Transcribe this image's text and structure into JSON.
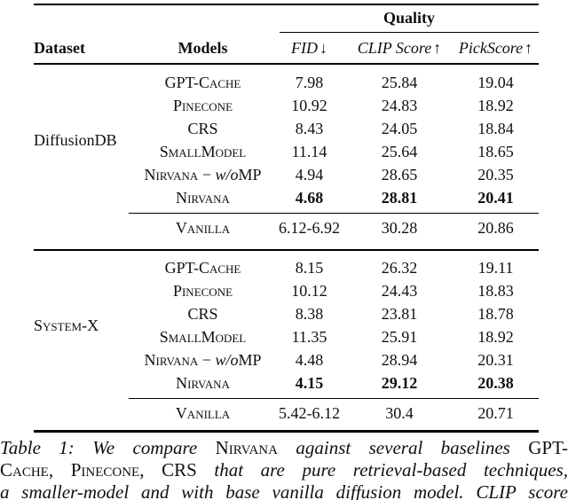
{
  "table": {
    "group_header": {
      "label": "Quality"
    },
    "columns": {
      "dataset": "Dataset",
      "models": "Models",
      "fid": "FID",
      "fid_arrow": "↓",
      "clip": "CLIP Score",
      "clip_arrow": "↑",
      "pick": "PickScore",
      "pick_arrow": "↑"
    },
    "blocks": [
      {
        "dataset": "DiffusionDB",
        "rows": [
          {
            "model": "GPT-Cache",
            "fid": "7.98",
            "clip": "25.84",
            "pick": "19.04"
          },
          {
            "model": "Pinecone",
            "fid": "10.92",
            "clip": "24.83",
            "pick": "18.92"
          },
          {
            "model": "CRS",
            "fid": "8.43",
            "clip": "24.05",
            "pick": "18.84"
          },
          {
            "model": "SmallModel",
            "fid": "11.14",
            "clip": "25.64",
            "pick": "18.65"
          },
          {
            "model": "Nirvana",
            "dash": " − ",
            "wo": "w/o",
            "mp": "MP",
            "fid": "4.94",
            "clip": "28.65",
            "pick": "20.35"
          },
          {
            "model": "Nirvana",
            "fid": "4.68",
            "clip": "28.81",
            "pick": "20.41"
          }
        ],
        "vanilla": {
          "model": "Vanilla",
          "fid": "6.12-6.92",
          "clip": "30.28",
          "pick": "20.86"
        }
      },
      {
        "dataset": "System-X",
        "rows": [
          {
            "model": "GPT-Cache",
            "fid": "8.15",
            "clip": "26.32",
            "pick": "19.11"
          },
          {
            "model": "Pinecone",
            "fid": "10.12",
            "clip": "24.43",
            "pick": "18.83"
          },
          {
            "model": "CRS",
            "fid": "8.38",
            "clip": "23.81",
            "pick": "18.78"
          },
          {
            "model": "SmallModel",
            "fid": "11.35",
            "clip": "25.91",
            "pick": "18.92"
          },
          {
            "model": "Nirvana",
            "dash": " − ",
            "wo": "w/o",
            "mp": "MP",
            "fid": "4.48",
            "clip": "28.94",
            "pick": "20.31"
          },
          {
            "model": "Nirvana",
            "fid": "4.15",
            "clip": "29.12",
            "pick": "20.38"
          }
        ],
        "vanilla": {
          "model": "Vanilla",
          "fid": "5.42-6.12",
          "clip": "30.4",
          "pick": "20.71"
        }
      }
    ]
  },
  "caption": {
    "line1": {
      "seg1": "Table 1: We compare ",
      "seg2": "Nirvana",
      "seg3": " against several baselines ",
      "seg4": "GPT-"
    },
    "line2": {
      "seg1": "Cache, Pinecone, CRS",
      "seg2": " that are pure retrieval-based techniques,"
    },
    "line3": {
      "seg1": "a smaller-model and with base vanilla diffusion model. CLIP score"
    }
  }
}
